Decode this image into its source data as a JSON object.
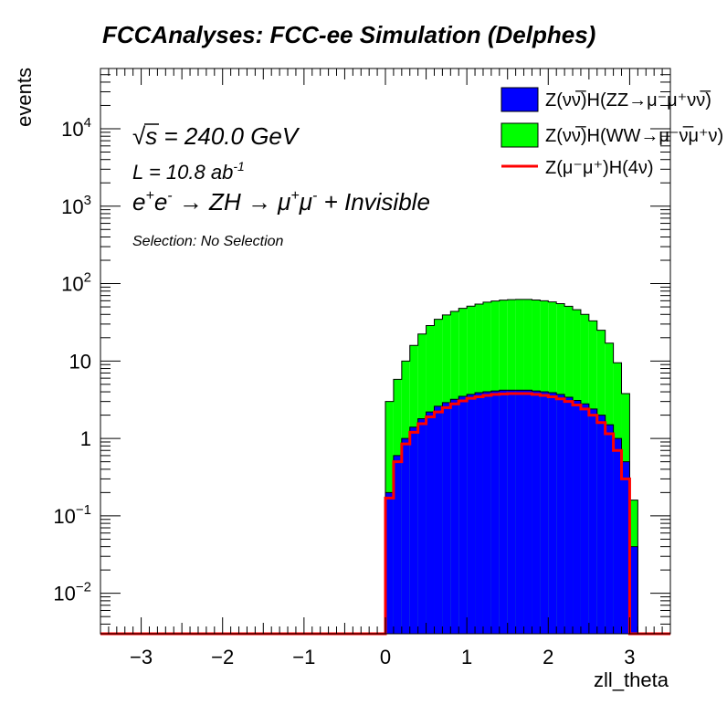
{
  "chart_data": {
    "type": "bar",
    "title": "FCCAnalyses: FCC-ee Simulation (Delphes)",
    "xlabel": "zll_theta",
    "ylabel": "events",
    "xlim": [
      -3.5,
      3.5
    ],
    "ylim": [
      0.003,
      60000
    ],
    "log_y": true,
    "stacked": true,
    "x_ticks": [
      -3,
      -2,
      -1,
      0,
      1,
      2,
      3
    ],
    "x_tick_labels": [
      "−3",
      "−2",
      "−1",
      "0",
      "1",
      "2",
      "3"
    ],
    "y_ticks": [
      {
        "value": 0.01,
        "base": "10",
        "exp": "−2"
      },
      {
        "value": 0.1,
        "base": "10",
        "exp": "−1"
      },
      {
        "value": 1,
        "base": "1",
        "exp": ""
      },
      {
        "value": 10,
        "base": "10",
        "exp": ""
      },
      {
        "value": 100,
        "base": "10",
        "exp": "2"
      },
      {
        "value": 1000,
        "base": "10",
        "exp": "3"
      },
      {
        "value": 10000,
        "base": "10",
        "exp": "4"
      }
    ],
    "bin_low_edges": [
      0.0,
      0.1,
      0.2,
      0.3,
      0.4,
      0.5,
      0.6,
      0.7,
      0.8,
      0.9,
      1.0,
      1.1,
      1.2,
      1.3,
      1.4,
      1.5,
      1.6,
      1.7,
      1.8,
      1.9,
      2.0,
      2.1,
      2.2,
      2.3,
      2.4,
      2.5,
      2.6,
      2.7,
      2.8,
      2.9,
      3.0,
      3.1
    ],
    "bin_width": 0.1,
    "series": [
      {
        "name": "Z(νν̅)H(ZZ→μ⁻μ⁺νν̅)",
        "legend_style": "fill",
        "color": "#0000ff",
        "values": [
          0.2,
          0.6,
          1.0,
          1.4,
          1.8,
          2.2,
          2.6,
          2.9,
          3.2,
          3.5,
          3.7,
          3.9,
          4.0,
          4.1,
          4.2,
          4.2,
          4.2,
          4.2,
          4.1,
          4.0,
          3.9,
          3.7,
          3.4,
          3.1,
          2.8,
          2.4,
          2.0,
          1.5,
          1.0,
          0.5,
          0.04,
          0.0
        ]
      },
      {
        "name": "Z(νν̅)H(WW→μ⁻ν̅μ⁺ν)",
        "legend_style": "fill",
        "color": "#00ff00",
        "values": [
          2.8,
          5.2,
          9.0,
          14.5,
          20.5,
          26.5,
          32.0,
          36.5,
          40.5,
          44.5,
          47.5,
          50.5,
          53.5,
          55.5,
          57.0,
          57.8,
          58.3,
          58.3,
          57.4,
          56.0,
          54.1,
          51.3,
          47.6,
          42.9,
          37.2,
          30.6,
          23.0,
          15.5,
          8.5,
          3.3,
          0.12,
          0.0
        ]
      },
      {
        "name": "Z(μ⁻μ⁺)H(4ν)",
        "legend_style": "line",
        "color": "#ff0000",
        "overlay": true,
        "values": [
          0.17,
          0.5,
          0.85,
          1.2,
          1.55,
          1.9,
          2.2,
          2.5,
          2.8,
          3.05,
          3.3,
          3.45,
          3.6,
          3.7,
          3.75,
          3.8,
          3.8,
          3.8,
          3.7,
          3.6,
          3.45,
          3.25,
          3.0,
          2.7,
          2.4,
          2.0,
          1.6,
          1.15,
          0.7,
          0.3,
          0.0,
          0.0
        ]
      }
    ]
  },
  "annotations": {
    "sqrt": "√",
    "sqrt_s_var": "s",
    "sqrt_s_value": " = 240.0 GeV",
    "lumi_text": "L = 10.8 ab",
    "lumi_exp": "-1",
    "process": {
      "e": "e",
      "sup_plus": "+",
      "sup_minus": "-",
      "arrow1": " → ZH ",
      "arrow2": "→ μ",
      "tail": " + Invisible"
    },
    "selection": "Selection: No Selection"
  }
}
